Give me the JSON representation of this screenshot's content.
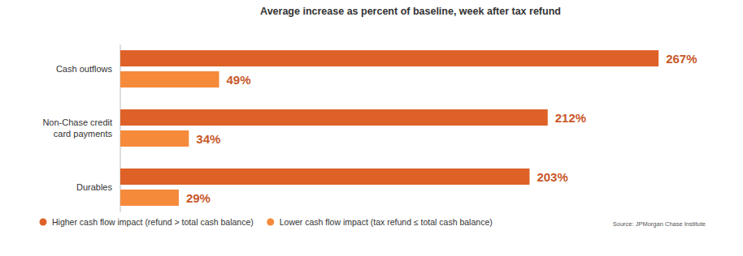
{
  "chart_data": {
    "type": "bar",
    "orientation": "horizontal",
    "title": "Average increase as percent of baseline, week after tax refund",
    "categories": [
      "Cash outflows",
      "Non-Chase credit card payments",
      "Durables"
    ],
    "series": [
      {
        "name": "Higher cash flow impact (refund > total cash balance)",
        "color": "#de6127",
        "values": [
          267,
          212,
          203
        ],
        "value_labels": [
          "267%",
          "212%",
          "203%"
        ]
      },
      {
        "name": "Lower cash flow impact (tax refund ≤ total cash balance)",
        "color": "#f58a3b",
        "values": [
          49,
          34,
          29
        ],
        "value_labels": [
          "49%",
          "34%",
          "29%"
        ]
      }
    ],
    "xlim": [
      0,
      300
    ],
    "tick_labels": false,
    "data_labels": true,
    "legend": "bottom-left",
    "source": "Source: JPMorgan Chase Institute"
  }
}
